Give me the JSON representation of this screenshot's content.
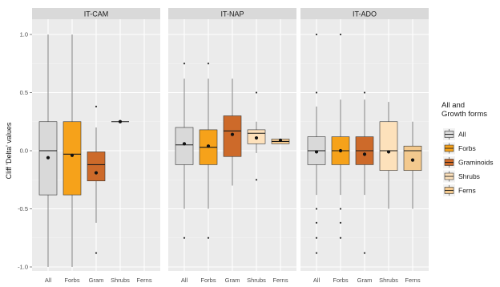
{
  "chart_data": {
    "type": "boxplot",
    "ylabel": "Cliff 'Delta' values",
    "ylim": [
      -1.05,
      1.05
    ],
    "yticks": [
      -1.0,
      -0.5,
      0.0,
      0.5,
      1.0
    ],
    "ytick_labels": [
      "-1.0",
      "-0.5",
      "0.0",
      "0.5",
      "1.0"
    ],
    "categories": [
      "All",
      "Forbs",
      "Gram",
      "Shrubs",
      "Ferns"
    ],
    "legend": {
      "title_lines": [
        "All and",
        "Growth forms"
      ],
      "position": "right",
      "entries": [
        {
          "label": "All",
          "color": "#d9d9d9"
        },
        {
          "label": "Forbs",
          "color": "#f6a21a"
        },
        {
          "label": "Graminoids",
          "color": "#cd6a2a"
        },
        {
          "label": "Shrubs",
          "color": "#fde1bb"
        },
        {
          "label": "Ferns",
          "color": "#f3c98e"
        }
      ]
    },
    "panels": [
      {
        "name": "IT-CAM",
        "boxes": [
          {
            "category": "All",
            "min": -1.0,
            "q1": -0.38,
            "median": 0.0,
            "q3": 0.25,
            "max": 1.0,
            "mean": -0.06,
            "outliers": []
          },
          {
            "category": "Forbs",
            "min": -1.0,
            "q1": -0.38,
            "median": -0.03,
            "q3": 0.25,
            "max": 1.0,
            "mean": -0.04,
            "outliers": []
          },
          {
            "category": "Gram",
            "min": -0.62,
            "q1": -0.26,
            "median": -0.12,
            "q3": -0.01,
            "max": 0.2,
            "mean": -0.19,
            "outliers": [
              0.38,
              -0.88
            ]
          },
          {
            "category": "Shrubs",
            "min": 0.25,
            "q1": 0.25,
            "median": 0.25,
            "q3": 0.25,
            "max": 0.25,
            "mean": 0.25,
            "outliers": []
          },
          {
            "category": "Ferns",
            "min": null,
            "q1": null,
            "median": null,
            "q3": null,
            "max": null,
            "mean": null,
            "outliers": []
          }
        ]
      },
      {
        "name": "IT-NAP",
        "boxes": [
          {
            "category": "All",
            "min": -0.5,
            "q1": -0.12,
            "median": 0.05,
            "q3": 0.2,
            "max": 0.62,
            "mean": 0.06,
            "outliers": [
              0.75,
              -0.75
            ]
          },
          {
            "category": "Forbs",
            "min": -0.5,
            "q1": -0.12,
            "median": 0.03,
            "q3": 0.18,
            "max": 0.62,
            "mean": 0.04,
            "outliers": [
              0.75,
              -0.75
            ]
          },
          {
            "category": "Gram",
            "min": -0.3,
            "q1": -0.05,
            "median": 0.17,
            "q3": 0.3,
            "max": 0.62,
            "mean": 0.14,
            "outliers": []
          },
          {
            "category": "Shrubs",
            "min": -0.02,
            "q1": 0.06,
            "median": 0.15,
            "q3": 0.18,
            "max": 0.25,
            "mean": 0.11,
            "outliers": [
              0.5,
              -0.25
            ]
          },
          {
            "category": "Ferns",
            "min": 0.06,
            "q1": 0.06,
            "median": 0.08,
            "q3": 0.1,
            "max": 0.1,
            "mean": 0.09,
            "outliers": []
          }
        ]
      },
      {
        "name": "IT-ADO",
        "boxes": [
          {
            "category": "All",
            "min": -0.38,
            "q1": -0.12,
            "median": 0.0,
            "q3": 0.12,
            "max": 0.38,
            "mean": -0.01,
            "outliers": [
              1.0,
              0.5,
              -0.5,
              -0.62,
              -0.75,
              -0.88
            ]
          },
          {
            "category": "Forbs",
            "min": -0.38,
            "q1": -0.12,
            "median": 0.0,
            "q3": 0.12,
            "max": 0.44,
            "mean": 0.0,
            "outliers": [
              1.0,
              -0.5,
              -0.62,
              -0.75
            ]
          },
          {
            "category": "Gram",
            "min": -0.38,
            "q1": -0.12,
            "median": 0.0,
            "q3": 0.12,
            "max": 0.44,
            "mean": -0.03,
            "outliers": [
              0.5,
              -0.88
            ]
          },
          {
            "category": "Shrubs",
            "min": -0.5,
            "q1": -0.17,
            "median": 0.0,
            "q3": 0.25,
            "max": 0.42,
            "mean": -0.01,
            "outliers": []
          },
          {
            "category": "Ferns",
            "min": -0.5,
            "q1": -0.17,
            "median": 0.0,
            "q3": 0.04,
            "max": 0.25,
            "mean": -0.08,
            "outliers": []
          }
        ]
      }
    ]
  }
}
